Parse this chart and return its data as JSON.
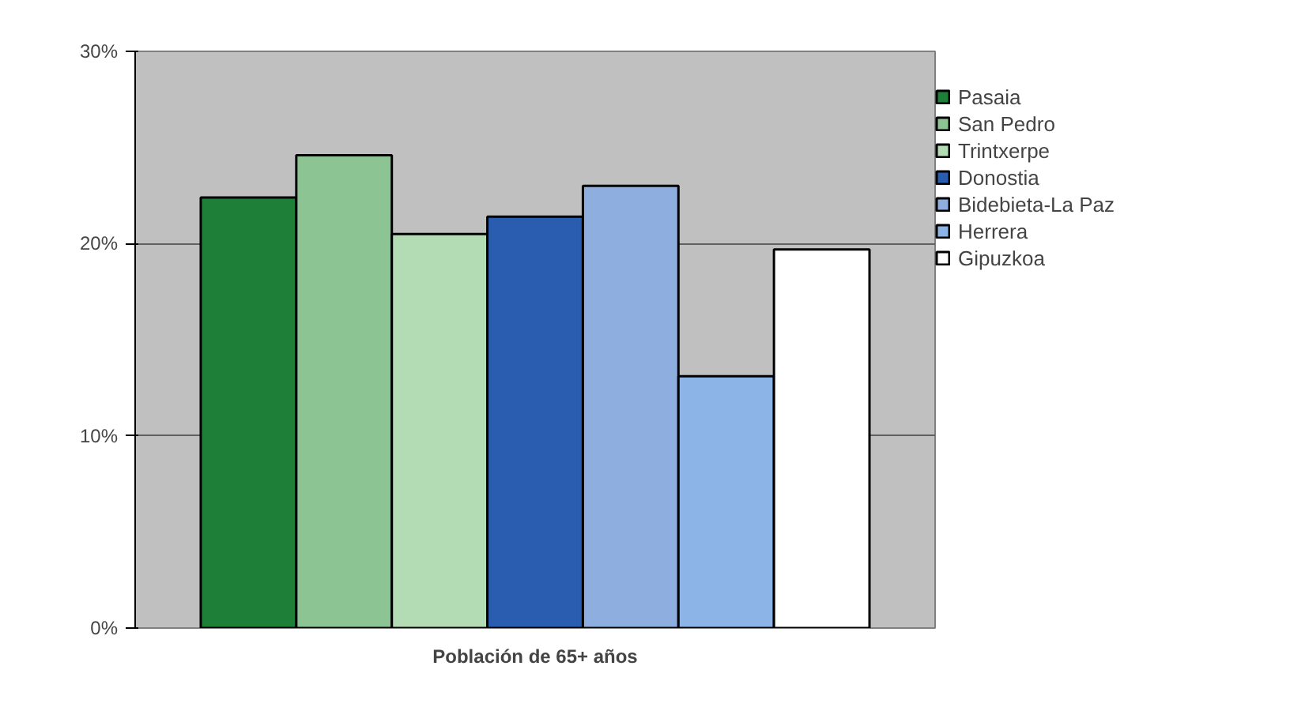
{
  "chart_data": {
    "type": "bar",
    "categories": [
      "Población de 65+ años"
    ],
    "series": [
      {
        "name": "Pasaia",
        "color": "#1e8038",
        "values": [
          22.4
        ]
      },
      {
        "name": "San Pedro",
        "color": "#8cc494",
        "values": [
          24.6
        ]
      },
      {
        "name": "Trintxerpe",
        "color": "#b4dcb4",
        "values": [
          20.5
        ]
      },
      {
        "name": "Donostia",
        "color": "#2a5db0",
        "values": [
          21.4
        ]
      },
      {
        "name": "Bidebieta-La Paz",
        "color": "#8eaee0",
        "values": [
          23.0
        ]
      },
      {
        "name": "Herrera",
        "color": "#8cb4e6",
        "values": [
          13.1
        ]
      },
      {
        "name": "Gipuzkoa",
        "color": "#ffffff",
        "values": [
          19.7
        ]
      }
    ],
    "ylim": [
      0,
      30
    ],
    "yticks": [
      {
        "value": 0,
        "label": "0%"
      },
      {
        "value": 10,
        "label": "10%"
      },
      {
        "value": 20,
        "label": "20%"
      },
      {
        "value": 30,
        "label": "30%"
      }
    ],
    "grid": "y",
    "legend": "right"
  }
}
